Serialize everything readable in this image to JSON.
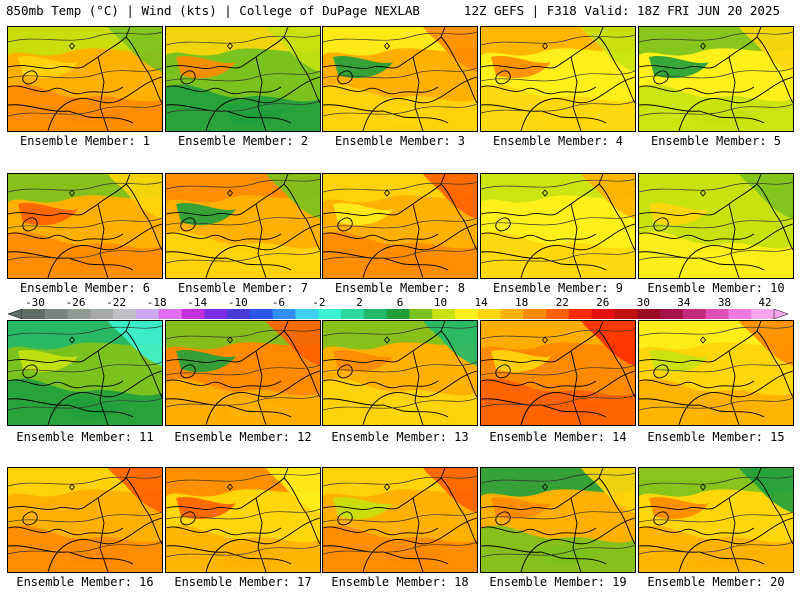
{
  "header": {
    "left": "850mb Temp (°C) | Wind (kts) | College of DuPage NEXLAB",
    "right": "12Z GEFS | F318 Valid: 18Z FRI JUN 20 2025"
  },
  "colorbar": {
    "ticks": [
      "-30",
      "-26",
      "-22",
      "-18",
      "-14",
      "-10",
      "-6",
      "-2",
      "2",
      "6",
      "10",
      "14",
      "18",
      "22",
      "26",
      "30",
      "34",
      "38",
      "42"
    ],
    "colors": [
      "#5e6e63",
      "#79857c",
      "#8f9a91",
      "#a5aca6",
      "#c2bfc6",
      "#c9a8ef",
      "#e06df0",
      "#c52fd9",
      "#7b2ee6",
      "#4b3ad8",
      "#2a55e8",
      "#2f8ef0",
      "#3fd0f2",
      "#3cf2d2",
      "#2fd6a0",
      "#21b86a",
      "#1fa03d",
      "#7ac21e",
      "#c7e20f",
      "#fff019",
      "#ffd60a",
      "#ffb000",
      "#ff8a00",
      "#ff5f00",
      "#ff2b00",
      "#e60f0f",
      "#c0100f",
      "#9b0a20",
      "#a4124a",
      "#c42a7a",
      "#e04fb6",
      "#f178df",
      "#f7a6ec"
    ]
  },
  "panels": [
    {
      "label": "Ensemble Member: 1",
      "palette": [
        "#ffb000",
        "#ff8a00",
        "#c7e20f",
        "#7ac21e",
        "#ffd60a"
      ]
    },
    {
      "label": "Ensemble Member: 2",
      "palette": [
        "#7ac21e",
        "#1fa03d",
        "#ffd60a",
        "#c7e20f",
        "#ff8a00"
      ]
    },
    {
      "label": "Ensemble Member: 3",
      "palette": [
        "#ffb000",
        "#ffd60a",
        "#fff019",
        "#ff8a00",
        "#1fa03d"
      ]
    },
    {
      "label": "Ensemble Member: 4",
      "palette": [
        "#fff019",
        "#ffd60a",
        "#ffb000",
        "#c7e20f",
        "#ff8a00"
      ]
    },
    {
      "label": "Ensemble Member: 5",
      "palette": [
        "#fff019",
        "#c7e20f",
        "#7ac21e",
        "#ffd60a",
        "#1fa03d"
      ]
    },
    {
      "label": "Ensemble Member: 6",
      "palette": [
        "#ffb000",
        "#ff8a00",
        "#7ac21e",
        "#ffd60a",
        "#ff5f00"
      ]
    },
    {
      "label": "Ensemble Member: 7",
      "palette": [
        "#ffb000",
        "#ffd60a",
        "#ff8a00",
        "#7ac21e",
        "#1fa03d"
      ]
    },
    {
      "label": "Ensemble Member: 8",
      "palette": [
        "#ffb000",
        "#ff8a00",
        "#ffd60a",
        "#ff5f00",
        "#fff019"
      ]
    },
    {
      "label": "Ensemble Member: 9",
      "palette": [
        "#fff019",
        "#ffd60a",
        "#c7e20f",
        "#ffb000",
        "#fff019"
      ]
    },
    {
      "label": "Ensemble Member: 10",
      "palette": [
        "#c7e20f",
        "#fff019",
        "#c7e20f",
        "#7ac21e",
        "#ffd60a"
      ]
    },
    {
      "label": "Ensemble Member: 11",
      "palette": [
        "#7ac21e",
        "#1fa03d",
        "#21b86a",
        "#3cf2d2",
        "#c7e20f"
      ]
    },
    {
      "label": "Ensemble Member: 12",
      "palette": [
        "#ff8a00",
        "#ffb000",
        "#7ac21e",
        "#ff5f00",
        "#1fa03d"
      ]
    },
    {
      "label": "Ensemble Member: 13",
      "palette": [
        "#ffb000",
        "#ffd60a",
        "#7ac21e",
        "#21b86a",
        "#ff8a00"
      ]
    },
    {
      "label": "Ensemble Member: 14",
      "palette": [
        "#ff8a00",
        "#ff5f00",
        "#ffb000",
        "#ff2b00",
        "#ffd60a"
      ]
    },
    {
      "label": "Ensemble Member: 15",
      "palette": [
        "#ffd60a",
        "#ffb000",
        "#fff019",
        "#ff8a00",
        "#c7e20f"
      ]
    },
    {
      "label": "Ensemble Member: 16",
      "palette": [
        "#ffb000",
        "#ff8a00",
        "#ffd60a",
        "#ff5f00",
        "#ffb000"
      ]
    },
    {
      "label": "Ensemble Member: 17",
      "palette": [
        "#ffd60a",
        "#ffb000",
        "#ff8a00",
        "#fff019",
        "#ff5f00"
      ]
    },
    {
      "label": "Ensemble Member: 18",
      "palette": [
        "#ffb000",
        "#ff8a00",
        "#ffd60a",
        "#ff5f00",
        "#c7e20f"
      ]
    },
    {
      "label": "Ensemble Member: 19",
      "palette": [
        "#ffb000",
        "#7ac21e",
        "#1fa03d",
        "#ffd60a",
        "#ff8a00"
      ]
    },
    {
      "label": "Ensemble Member: 20",
      "palette": [
        "#ffd60a",
        "#ffb000",
        "#7ac21e",
        "#1fa03d",
        "#ff8a00"
      ]
    }
  ]
}
